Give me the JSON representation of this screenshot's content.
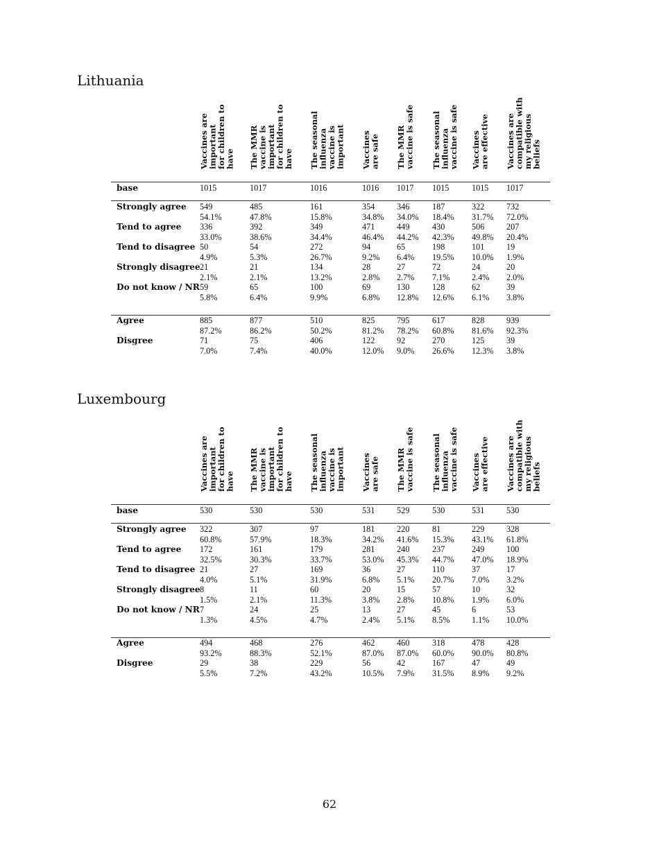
{
  "page_number": "62",
  "columns": [
    [
      "Vaccines are",
      "important",
      "for children to",
      "have"
    ],
    [
      "The MMR",
      "vaccine is",
      "important",
      "for children to",
      "have"
    ],
    [
      "The seasonal",
      "influenza",
      "vaccine is",
      "important"
    ],
    [
      "Vaccines",
      "are safe"
    ],
    [
      "The MMR",
      "vaccine is safe"
    ],
    [
      "The seasonal",
      "influenza",
      "vaccine is safe"
    ],
    [
      "Vaccines",
      "are effective"
    ],
    [
      "Vaccines are",
      "compatible with",
      "my religious",
      "beliefs"
    ]
  ],
  "tables": [
    {
      "country": "Lithuania",
      "base_label": "base",
      "base": [
        "1015",
        "1017",
        "1016",
        "1016",
        "1017",
        "1015",
        "1015",
        "1017"
      ],
      "rows": [
        {
          "label": "Strongly agree",
          "n": [
            "549",
            "485",
            "161",
            "354",
            "346",
            "187",
            "322",
            "732"
          ],
          "pct": [
            "54.1%",
            "47.8%",
            "15.8%",
            "34.8%",
            "34.0%",
            "18.4%",
            "31.7%",
            "72.0%"
          ]
        },
        {
          "label": "Tend to agree",
          "n": [
            "336",
            "392",
            "349",
            "471",
            "449",
            "430",
            "506",
            "207"
          ],
          "pct": [
            "33.0%",
            "38.6%",
            "34.4%",
            "46.4%",
            "44.2%",
            "42.3%",
            "49.8%",
            "20.4%"
          ]
        },
        {
          "label": "Tend to disagree",
          "n": [
            "50",
            "54",
            "272",
            "94",
            "65",
            "198",
            "101",
            "19"
          ],
          "pct": [
            "4.9%",
            "5.3%",
            "26.7%",
            "9.2%",
            "6.4%",
            "19.5%",
            "10.0%",
            "1.9%"
          ]
        },
        {
          "label": "Strongly disagree",
          "n": [
            "21",
            "21",
            "134",
            "28",
            "27",
            "72",
            "24",
            "20"
          ],
          "pct": [
            "2.1%",
            "2.1%",
            "13.2%",
            "2.8%",
            "2.7%",
            "7.1%",
            "2.4%",
            "2.0%"
          ]
        },
        {
          "label": "Do not know / NR",
          "n": [
            "59",
            "65",
            "100",
            "69",
            "130",
            "128",
            "62",
            "39"
          ],
          "pct": [
            "5.8%",
            "6.4%",
            "9.9%",
            "6.8%",
            "12.8%",
            "12.6%",
            "6.1%",
            "3.8%"
          ]
        }
      ],
      "summary": [
        {
          "label": "Agree",
          "n": [
            "885",
            "877",
            "510",
            "825",
            "795",
            "617",
            "828",
            "939"
          ],
          "pct": [
            "87.2%",
            "86.2%",
            "50.2%",
            "81.2%",
            "78.2%",
            "60.8%",
            "81.6%",
            "92.3%"
          ]
        },
        {
          "label": "Disgree",
          "n": [
            "71",
            "75",
            "406",
            "122",
            "92",
            "270",
            "125",
            "39"
          ],
          "pct": [
            "7.0%",
            "7.4%",
            "40.0%",
            "12.0%",
            "9.0%",
            "26.6%",
            "12.3%",
            "3.8%"
          ]
        }
      ]
    },
    {
      "country": "Luxembourg",
      "base_label": "base",
      "base": [
        "530",
        "530",
        "530",
        "531",
        "529",
        "530",
        "531",
        "530"
      ],
      "rows": [
        {
          "label": "Strongly agree",
          "n": [
            "322",
            "307",
            "97",
            "181",
            "220",
            "81",
            "229",
            "328"
          ],
          "pct": [
            "60.8%",
            "57.9%",
            "18.3%",
            "34.2%",
            "41.6%",
            "15.3%",
            "43.1%",
            "61.8%"
          ]
        },
        {
          "label": "Tend to agree",
          "n": [
            "172",
            "161",
            "179",
            "281",
            "240",
            "237",
            "249",
            "100"
          ],
          "pct": [
            "32.5%",
            "30.3%",
            "33.7%",
            "53.0%",
            "45.3%",
            "44.7%",
            "47.0%",
            "18.9%"
          ]
        },
        {
          "label": "Tend to disagree",
          "n": [
            "21",
            "27",
            "169",
            "36",
            "27",
            "110",
            "37",
            "17"
          ],
          "pct": [
            "4.0%",
            "5.1%",
            "31.9%",
            "6.8%",
            "5.1%",
            "20.7%",
            "7.0%",
            "3.2%"
          ]
        },
        {
          "label": "Strongly disagree",
          "n": [
            "8",
            "11",
            "60",
            "20",
            "15",
            "57",
            "10",
            "32"
          ],
          "pct": [
            "1.5%",
            "2.1%",
            "11.3%",
            "3.8%",
            "2.8%",
            "10.8%",
            "1.9%",
            "6.0%"
          ]
        },
        {
          "label": "Do not know / NR",
          "n": [
            "7",
            "24",
            "25",
            "13",
            "27",
            "45",
            "6",
            "53"
          ],
          "pct": [
            "1.3%",
            "4.5%",
            "4.7%",
            "2.4%",
            "5.1%",
            "8.5%",
            "1.1%",
            "10.0%"
          ]
        }
      ],
      "summary": [
        {
          "label": "Agree",
          "n": [
            "494",
            "468",
            "276",
            "462",
            "460",
            "318",
            "478",
            "428"
          ],
          "pct": [
            "93.2%",
            "88.3%",
            "52.1%",
            "87.0%",
            "87.0%",
            "60.0%",
            "90.0%",
            "80.8%"
          ]
        },
        {
          "label": "Disgree",
          "n": [
            "29",
            "38",
            "229",
            "56",
            "42",
            "167",
            "47",
            "49"
          ],
          "pct": [
            "5.5%",
            "7.2%",
            "43.2%",
            "10.5%",
            "7.9%",
            "31.5%",
            "8.9%",
            "9.2%"
          ]
        }
      ]
    }
  ]
}
